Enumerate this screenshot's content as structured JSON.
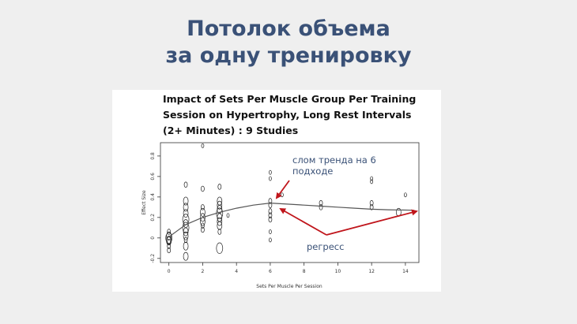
{
  "slide": {
    "title_line1": "Потолок объема",
    "title_line2": "за одну тренировку"
  },
  "colors": {
    "title": "#3a5177",
    "annotation_text": "#3a5177",
    "arrow": "#c0151b",
    "background": "#efefef"
  },
  "chart_data": {
    "type": "scatter",
    "title_lines": [
      "Impact of Sets Per Muscle Group Per Training",
      "Session on Hypertrophy, Long Rest Intervals",
      "(2+ Minutes) : 9 Studies"
    ],
    "xlabel": "Sets Per Muscle Per Session",
    "ylabel": "Effect Size",
    "xlim": [
      -0.5,
      14.8
    ],
    "ylim": [
      -0.24,
      0.93
    ],
    "x_ticks": [
      0,
      2,
      4,
      6,
      8,
      10,
      12,
      14
    ],
    "y_ticks": [
      -0.2,
      0,
      0.2,
      0.4,
      0.6,
      0.8
    ],
    "grid": false,
    "points": [
      {
        "x": 0,
        "y": 0.02,
        "r": 3
      },
      {
        "x": 0,
        "y": 0.0,
        "r": 4
      },
      {
        "x": 0,
        "y": -0.02,
        "r": 3
      },
      {
        "x": 0,
        "y": -0.04,
        "r": 2
      },
      {
        "x": 0,
        "y": 0.06,
        "r": 2
      },
      {
        "x": 0,
        "y": -0.08,
        "r": 2
      },
      {
        "x": 0,
        "y": -0.12,
        "r": 2
      },
      {
        "x": 0,
        "y": -0.03,
        "r": 3
      },
      {
        "x": 1,
        "y": 0.52,
        "r": 2
      },
      {
        "x": 1,
        "y": 0.36,
        "r": 3
      },
      {
        "x": 1,
        "y": 0.3,
        "r": 3
      },
      {
        "x": 1,
        "y": 0.24,
        "r": 3
      },
      {
        "x": 1,
        "y": 0.18,
        "r": 4
      },
      {
        "x": 1,
        "y": 0.14,
        "r": 3
      },
      {
        "x": 1,
        "y": 0.1,
        "r": 4
      },
      {
        "x": 1,
        "y": 0.06,
        "r": 3
      },
      {
        "x": 1,
        "y": 0.02,
        "r": 3
      },
      {
        "x": 1,
        "y": -0.02,
        "r": 2
      },
      {
        "x": 1,
        "y": -0.08,
        "r": 3
      },
      {
        "x": 1,
        "y": -0.18,
        "r": 3
      },
      {
        "x": 2,
        "y": 0.9,
        "r": 1.5
      },
      {
        "x": 2,
        "y": 0.48,
        "r": 2
      },
      {
        "x": 2,
        "y": 0.3,
        "r": 2
      },
      {
        "x": 2,
        "y": 0.25,
        "r": 3
      },
      {
        "x": 2,
        "y": 0.2,
        "r": 3
      },
      {
        "x": 2,
        "y": 0.16,
        "r": 3
      },
      {
        "x": 2,
        "y": 0.12,
        "r": 2
      },
      {
        "x": 2,
        "y": 0.08,
        "r": 2
      },
      {
        "x": 3,
        "y": 0.5,
        "r": 2
      },
      {
        "x": 3,
        "y": 0.36,
        "r": 3
      },
      {
        "x": 3,
        "y": 0.32,
        "r": 3
      },
      {
        "x": 3,
        "y": 0.28,
        "r": 3
      },
      {
        "x": 3,
        "y": 0.24,
        "r": 4
      },
      {
        "x": 3,
        "y": 0.2,
        "r": 3
      },
      {
        "x": 3,
        "y": 0.16,
        "r": 3
      },
      {
        "x": 3,
        "y": 0.12,
        "r": 3
      },
      {
        "x": 3,
        "y": 0.06,
        "r": 2
      },
      {
        "x": 3,
        "y": -0.1,
        "r": 4
      },
      {
        "x": 3.5,
        "y": 0.22,
        "r": 1.5
      },
      {
        "x": 6,
        "y": 0.64,
        "r": 1.5
      },
      {
        "x": 6,
        "y": 0.58,
        "r": 1.5
      },
      {
        "x": 6,
        "y": 0.36,
        "r": 2
      },
      {
        "x": 6,
        "y": 0.32,
        "r": 2
      },
      {
        "x": 6,
        "y": 0.26,
        "r": 2
      },
      {
        "x": 6,
        "y": 0.22,
        "r": 2
      },
      {
        "x": 6,
        "y": 0.18,
        "r": 2
      },
      {
        "x": 6,
        "y": 0.06,
        "r": 1.5
      },
      {
        "x": 6,
        "y": -0.02,
        "r": 1.5
      },
      {
        "x": 6.7,
        "y": 0.42,
        "r": 1.5
      },
      {
        "x": 9,
        "y": 0.34,
        "r": 2
      },
      {
        "x": 9,
        "y": 0.3,
        "r": 2
      },
      {
        "x": 12,
        "y": 0.58,
        "r": 1.5
      },
      {
        "x": 12,
        "y": 0.55,
        "r": 1.5
      },
      {
        "x": 12,
        "y": 0.34,
        "r": 2
      },
      {
        "x": 12,
        "y": 0.3,
        "r": 2
      },
      {
        "x": 13.6,
        "y": 0.25,
        "r": 3
      },
      {
        "x": 14,
        "y": 0.42,
        "r": 1.5
      }
    ],
    "trend_line": [
      {
        "x": 0,
        "y": 0.01
      },
      {
        "x": 0.5,
        "y": 0.07
      },
      {
        "x": 1,
        "y": 0.13
      },
      {
        "x": 2,
        "y": 0.2
      },
      {
        "x": 3,
        "y": 0.25
      },
      {
        "x": 4,
        "y": 0.29
      },
      {
        "x": 5,
        "y": 0.32
      },
      {
        "x": 6,
        "y": 0.34
      },
      {
        "x": 7,
        "y": 0.33
      },
      {
        "x": 8,
        "y": 0.32
      },
      {
        "x": 9,
        "y": 0.31
      },
      {
        "x": 10,
        "y": 0.3
      },
      {
        "x": 11,
        "y": 0.29
      },
      {
        "x": 12,
        "y": 0.28
      },
      {
        "x": 13,
        "y": 0.275
      },
      {
        "x": 14.5,
        "y": 0.27
      }
    ],
    "annotations": {
      "break_label_line1": "слом тренда на 6",
      "break_label_line2": "подходе",
      "regress_label": "регресс"
    }
  }
}
